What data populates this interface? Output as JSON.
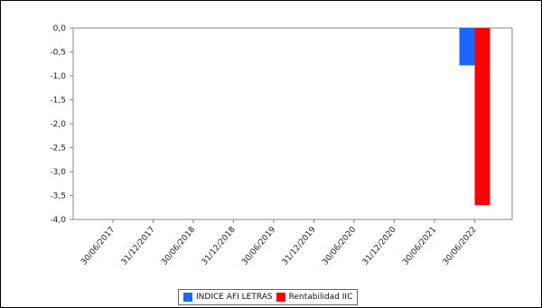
{
  "chart_data": {
    "type": "bar",
    "categories": [
      "30/06/2017",
      "31/12/2017",
      "30/06/2018",
      "31/12/2018",
      "30/06/2019",
      "31/12/2019",
      "30/06/2020",
      "31/12/2020",
      "30/06/2021",
      "30/06/2022"
    ],
    "series": [
      {
        "name": "INDICE AFI LETRAS",
        "color": "#1a66ff",
        "values": [
          null,
          null,
          null,
          null,
          null,
          null,
          null,
          null,
          null,
          -0.78
        ]
      },
      {
        "name": "Rentabilidad IIC",
        "color": "#ff0000",
        "values": [
          null,
          null,
          null,
          null,
          null,
          null,
          null,
          null,
          null,
          -3.7
        ]
      }
    ],
    "y_ticks": [
      "0,0",
      "-0,5",
      "-1,0",
      "-1,5",
      "-2,0",
      "-2,5",
      "-3,0",
      "-3,5",
      "-4,0"
    ],
    "y_tick_values": [
      0,
      -0.5,
      -1.0,
      -1.5,
      -2.0,
      -2.5,
      -3.0,
      -3.5,
      -4.0
    ],
    "ylim": [
      -4.0,
      0.0
    ],
    "title": "",
    "xlabel": "",
    "ylabel": "",
    "grid": false,
    "legend_position": "bottom"
  }
}
